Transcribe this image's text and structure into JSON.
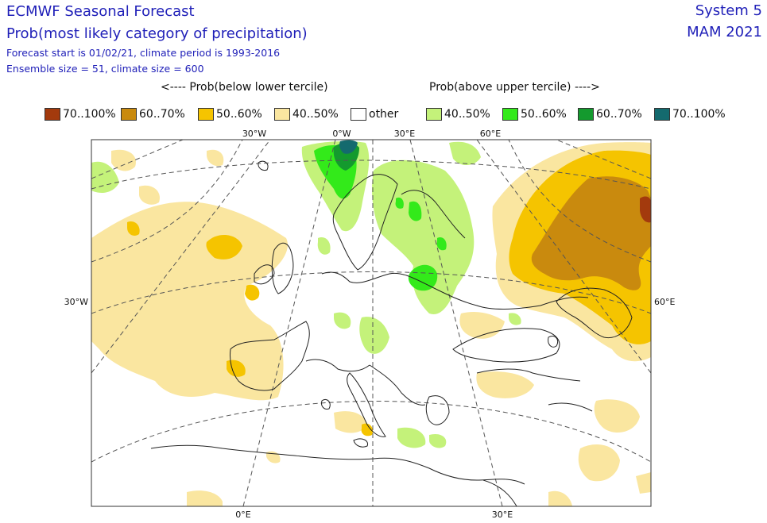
{
  "header": {
    "title": "ECMWF Seasonal Forecast",
    "subtitle": "Prob(most likely category of precipitation)",
    "forecast_info": "Forecast start is 01/02/21, climate period is 1993-2016",
    "ensemble_info": "Ensemble size = 51, climate size = 600",
    "system": "System 5",
    "season": "MAM 2021"
  },
  "legend": {
    "below_header": "<---- Prob(below lower tercile)",
    "above_header": "Prob(above upper tercile) ---->",
    "items": [
      {
        "label": "70..100%",
        "color": "#a33a0d"
      },
      {
        "label": "60..70%",
        "color": "#c98a0e"
      },
      {
        "label": "50..60%",
        "color": "#f5c400"
      },
      {
        "label": "40..50%",
        "color": "#fae6a0"
      },
      {
        "label": "other",
        "color": "#ffffff"
      },
      {
        "label": "40..50%",
        "color": "#c4f27a"
      },
      {
        "label": "50..60%",
        "color": "#33ea1a"
      },
      {
        "label": "60..70%",
        "color": "#149a2e"
      },
      {
        "label": "70..100%",
        "color": "#146a6e"
      }
    ]
  },
  "map": {
    "ticks": {
      "top": [
        "30°W",
        "0°W",
        "30°E",
        "60°E"
      ],
      "left": "30°W",
      "right": "60°E",
      "bottom": [
        "0°E",
        "30°E"
      ]
    }
  }
}
